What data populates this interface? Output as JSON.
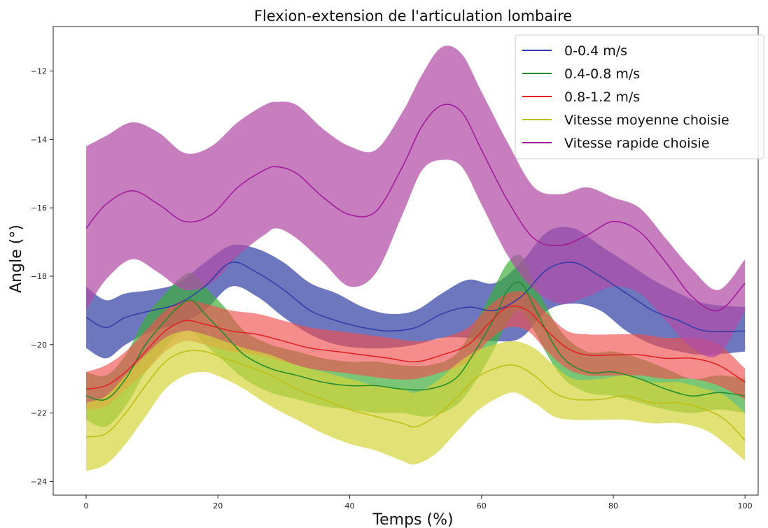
{
  "chart_data": {
    "type": "line",
    "title": "Flexion-extension de l'articulation lombaire",
    "xlabel": "Temps (%)",
    "ylabel": "Angle (°)",
    "xlim": [
      -5,
      102
    ],
    "ylim": [
      -24.4,
      -10.7
    ],
    "xticks": [
      0,
      20,
      40,
      60,
      80,
      100
    ],
    "yticks": [
      -24,
      -22,
      -20,
      -18,
      -16,
      -14,
      -12
    ],
    "xtick_labels": [
      "0",
      "20",
      "40",
      "60",
      "80",
      "100"
    ],
    "ytick_labels": [
      "−24",
      "−22",
      "−20",
      "−18",
      "−16",
      "−14",
      "−12"
    ],
    "grid": false,
    "legend_position": "top-right",
    "series": [
      {
        "name": "0-0.4 m/s",
        "color": "#2f3aa8",
        "band_color": "#3c4aa8",
        "band_opacity": 0.75,
        "x": [
          0,
          3,
          6,
          10,
          14,
          18,
          22,
          26,
          30,
          34,
          38,
          42,
          46,
          50,
          54,
          58,
          62,
          66,
          70,
          74,
          78,
          82,
          86,
          90,
          94,
          100
        ],
        "mean": [
          -19.2,
          -19.5,
          -19.2,
          -19.0,
          -18.8,
          -18.3,
          -17.6,
          -17.9,
          -18.4,
          -19.0,
          -19.3,
          -19.5,
          -19.6,
          -19.5,
          -19.1,
          -18.9,
          -19.0,
          -18.6,
          -17.8,
          -17.6,
          -18.0,
          -18.5,
          -19.0,
          -19.3,
          -19.6,
          -19.6
        ],
        "lower": [
          -20.1,
          -20.4,
          -20.0,
          -19.6,
          -19.4,
          -19.0,
          -18.3,
          -18.6,
          -19.2,
          -19.7,
          -20.0,
          -20.1,
          -20.1,
          -20.0,
          -19.8,
          -19.8,
          -19.9,
          -19.8,
          -19.0,
          -18.8,
          -19.0,
          -19.6,
          -20.0,
          -20.2,
          -20.3,
          -20.2
        ],
        "upper": [
          -18.3,
          -18.7,
          -18.5,
          -18.4,
          -18.2,
          -17.6,
          -17.1,
          -17.2,
          -17.6,
          -18.2,
          -18.5,
          -18.9,
          -19.1,
          -19.0,
          -18.5,
          -18.1,
          -18.2,
          -17.6,
          -16.7,
          -16.6,
          -17.1,
          -17.6,
          -18.1,
          -18.5,
          -18.8,
          -18.9
        ]
      },
      {
        "name": "0.4-0.8 m/s",
        "color": "#1f8a2a",
        "band_color": "#3fae3c",
        "band_opacity": 0.7,
        "x": [
          0,
          3,
          6,
          9,
          12,
          14,
          16,
          18,
          21,
          24,
          28,
          32,
          36,
          40,
          44,
          48,
          52,
          56,
          59,
          62,
          64,
          66,
          68,
          72,
          76,
          80,
          84,
          88,
          92,
          96,
          100
        ],
        "mean": [
          -21.5,
          -21.6,
          -21.0,
          -20.0,
          -19.3,
          -18.9,
          -18.7,
          -19.1,
          -19.7,
          -20.3,
          -20.7,
          -20.9,
          -21.1,
          -21.2,
          -21.2,
          -21.3,
          -21.3,
          -21.0,
          -20.2,
          -19.2,
          -18.4,
          -18.2,
          -18.9,
          -20.3,
          -20.8,
          -20.8,
          -21.0,
          -21.3,
          -21.5,
          -21.4,
          -21.5
        ],
        "lower": [
          -22.2,
          -22.4,
          -21.8,
          -20.8,
          -20.1,
          -19.7,
          -19.6,
          -20.0,
          -20.5,
          -21.0,
          -21.4,
          -21.6,
          -21.8,
          -21.9,
          -22.0,
          -22.0,
          -22.1,
          -21.8,
          -21.1,
          -20.1,
          -19.3,
          -19.0,
          -19.6,
          -20.9,
          -21.4,
          -21.5,
          -21.7,
          -21.9,
          -22.0,
          -21.9,
          -22.0
        ],
        "upper": [
          -20.8,
          -20.9,
          -20.3,
          -19.2,
          -18.5,
          -18.1,
          -17.9,
          -18.3,
          -18.9,
          -19.6,
          -20.0,
          -20.2,
          -20.4,
          -20.5,
          -20.5,
          -20.6,
          -20.6,
          -20.3,
          -19.4,
          -18.3,
          -17.6,
          -17.4,
          -18.2,
          -19.6,
          -20.2,
          -20.2,
          -20.4,
          -20.7,
          -21.0,
          -20.9,
          -21.0
        ]
      },
      {
        "name": "0.8-1.2 m/s",
        "color": "#e02020",
        "band_color": "#f05050",
        "band_opacity": 0.65,
        "x": [
          0,
          3,
          6,
          9,
          12,
          15,
          18,
          22,
          26,
          30,
          34,
          38,
          42,
          46,
          50,
          54,
          58,
          61,
          64,
          67,
          70,
          73,
          76,
          80,
          84,
          88,
          92,
          96,
          100
        ],
        "mean": [
          -21.3,
          -21.2,
          -20.8,
          -20.2,
          -19.6,
          -19.3,
          -19.4,
          -19.6,
          -19.7,
          -19.9,
          -20.1,
          -20.2,
          -20.3,
          -20.4,
          -20.5,
          -20.3,
          -20.0,
          -19.4,
          -18.9,
          -19.0,
          -19.6,
          -20.1,
          -20.3,
          -20.3,
          -20.3,
          -20.4,
          -20.4,
          -20.6,
          -21.1
        ],
        "lower": [
          -21.9,
          -21.8,
          -21.3,
          -20.8,
          -20.2,
          -19.9,
          -20.0,
          -20.2,
          -20.3,
          -20.5,
          -20.7,
          -20.8,
          -20.9,
          -21.0,
          -21.0,
          -20.8,
          -20.5,
          -19.9,
          -19.5,
          -19.6,
          -20.2,
          -20.7,
          -20.9,
          -20.9,
          -20.9,
          -21.0,
          -21.0,
          -21.2,
          -21.6
        ],
        "upper": [
          -20.8,
          -20.6,
          -20.2,
          -19.6,
          -19.0,
          -18.7,
          -18.8,
          -19.0,
          -19.1,
          -19.3,
          -19.5,
          -19.6,
          -19.7,
          -19.8,
          -19.9,
          -19.8,
          -19.5,
          -18.9,
          -18.5,
          -18.5,
          -19.1,
          -19.6,
          -19.7,
          -19.7,
          -19.7,
          -19.8,
          -19.8,
          -20.0,
          -20.7
        ]
      },
      {
        "name": "Vitesse moyenne choisie",
        "color": "#bdbd12",
        "band_color": "#d4d43c",
        "band_opacity": 0.7,
        "x": [
          0,
          3,
          6,
          9,
          12,
          15,
          18,
          21,
          24,
          28,
          32,
          36,
          40,
          44,
          48,
          50,
          53,
          56,
          59,
          62,
          65,
          68,
          71,
          74,
          78,
          82,
          86,
          90,
          94,
          97,
          100
        ],
        "mean": [
          -22.7,
          -22.6,
          -22.0,
          -21.2,
          -20.5,
          -20.2,
          -20.2,
          -20.4,
          -20.6,
          -20.9,
          -21.3,
          -21.6,
          -21.9,
          -22.1,
          -22.3,
          -22.4,
          -22.1,
          -21.6,
          -21.0,
          -20.7,
          -20.6,
          -20.9,
          -21.4,
          -21.6,
          -21.6,
          -21.5,
          -21.7,
          -21.7,
          -21.9,
          -22.2,
          -22.8
        ],
        "lower": [
          -23.7,
          -23.5,
          -22.9,
          -22.1,
          -21.3,
          -20.9,
          -20.8,
          -21.0,
          -21.3,
          -21.8,
          -22.2,
          -22.6,
          -22.9,
          -23.1,
          -23.4,
          -23.5,
          -23.2,
          -22.6,
          -22.0,
          -21.6,
          -21.4,
          -21.7,
          -22.1,
          -22.2,
          -22.2,
          -22.2,
          -22.3,
          -22.3,
          -22.5,
          -22.9,
          -23.4
        ],
        "upper": [
          -21.7,
          -21.5,
          -20.9,
          -20.3,
          -19.8,
          -19.6,
          -19.7,
          -19.9,
          -20.1,
          -20.3,
          -20.6,
          -20.8,
          -21.0,
          -21.2,
          -21.3,
          -21.4,
          -21.1,
          -20.6,
          -20.2,
          -20.0,
          -19.9,
          -20.1,
          -20.6,
          -21.0,
          -21.0,
          -20.9,
          -21.1,
          -21.1,
          -21.3,
          -21.5,
          -22.0
        ]
      },
      {
        "name": "Vitesse rapide choisie",
        "color": "#a0179a",
        "band_color": "#b24ca6",
        "band_opacity": 0.72,
        "x": [
          0,
          3,
          7,
          11,
          15,
          19,
          23,
          27,
          29,
          32,
          36,
          40,
          44,
          48,
          51,
          54,
          57,
          60,
          64,
          68,
          72,
          76,
          80,
          84,
          88,
          92,
          96,
          100
        ],
        "mean": [
          -16.6,
          -15.9,
          -15.5,
          -15.9,
          -16.4,
          -16.2,
          -15.4,
          -14.9,
          -14.8,
          -15.0,
          -15.7,
          -16.2,
          -16.1,
          -14.8,
          -13.6,
          -13.0,
          -13.2,
          -14.3,
          -15.8,
          -16.9,
          -17.1,
          -16.8,
          -16.4,
          -16.7,
          -17.6,
          -18.6,
          -19.0,
          -18.2
        ],
        "lower": [
          -19.0,
          -18.1,
          -17.5,
          -17.9,
          -18.4,
          -18.2,
          -17.4,
          -16.8,
          -16.6,
          -16.9,
          -17.6,
          -18.3,
          -17.9,
          -16.2,
          -14.9,
          -14.6,
          -14.8,
          -15.9,
          -17.4,
          -18.4,
          -18.8,
          -18.6,
          -18.3,
          -18.5,
          -19.3,
          -20.1,
          -20.3,
          -19.0
        ],
        "upper": [
          -14.2,
          -13.9,
          -13.5,
          -13.8,
          -14.4,
          -14.2,
          -13.5,
          -13.0,
          -12.9,
          -13.0,
          -13.7,
          -14.2,
          -14.3,
          -13.2,
          -12.1,
          -11.3,
          -11.5,
          -12.6,
          -14.1,
          -15.4,
          -15.6,
          -15.4,
          -15.7,
          -16.0,
          -16.9,
          -17.8,
          -18.4,
          -17.5
        ]
      }
    ]
  }
}
